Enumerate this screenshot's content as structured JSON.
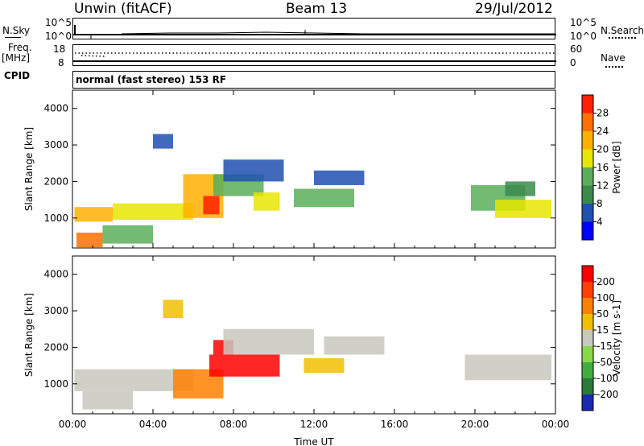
{
  "header": {
    "station": "Unwin (fitACF)",
    "beam": "Beam 13",
    "date": "29/Jul/2012"
  },
  "top_panels": {
    "nsky_label": "N.Sky",
    "nsearch_label": "N.Search",
    "nsky_ticks": [
      "10^5",
      "10^0"
    ],
    "nsearch_ticks": [
      "10^5",
      "10^0"
    ],
    "freq_label": "Freq.",
    "freq_unit": "[MHz]",
    "freq_ticks": [
      "18",
      "8"
    ],
    "nave_label": "Nave",
    "nave_ticks": [
      "60",
      "0"
    ],
    "cpid_label": "CPID",
    "cpid_text": "normal (fast stereo) 153 RF"
  },
  "chart_data": [
    {
      "type": "heatmap",
      "quantity": "Power",
      "ylabel": "Slant Range [km]",
      "xlabel": "Time UT",
      "x_ticks": [
        "00:00",
        "04:00",
        "08:00",
        "12:00",
        "16:00",
        "20:00",
        "00:00"
      ],
      "y_ticks": [
        "1000",
        "2000",
        "3000",
        "4000"
      ],
      "xlim": [
        0,
        24
      ],
      "ylim": [
        180,
        4500
      ],
      "colorbar": {
        "label": "Power [dB]",
        "ticks": [
          "4",
          "8",
          "12",
          "16",
          "20",
          "24",
          "28"
        ],
        "range": [
          0,
          32
        ],
        "colors": [
          "#0000ff",
          "#2050b0",
          "#3a8a4a",
          "#5aae5a",
          "#e6e600",
          "#ffb000",
          "#ff7000",
          "#ff2000"
        ]
      },
      "regions": [
        {
          "t0": 0.1,
          "t1": 2.0,
          "r0": 900,
          "r1": 1300,
          "level": 5
        },
        {
          "t0": 2.0,
          "t1": 6.0,
          "r0": 950,
          "r1": 1400,
          "level": 4
        },
        {
          "t0": 5.5,
          "t1": 7.5,
          "r0": 1000,
          "r1": 2200,
          "level": 5
        },
        {
          "t0": 6.5,
          "t1": 7.3,
          "r0": 1100,
          "r1": 1600,
          "level": 7
        },
        {
          "t0": 0.2,
          "t1": 1.5,
          "r0": 200,
          "r1": 600,
          "level": 6
        },
        {
          "t0": 1.5,
          "t1": 4.0,
          "r0": 300,
          "r1": 800,
          "level": 3
        },
        {
          "t0": 7.0,
          "t1": 9.5,
          "r0": 1600,
          "r1": 2200,
          "level": 3
        },
        {
          "t0": 7.5,
          "t1": 10.5,
          "r0": 2000,
          "r1": 2600,
          "level": 1
        },
        {
          "t0": 9.0,
          "t1": 10.3,
          "r0": 1200,
          "r1": 1700,
          "level": 4
        },
        {
          "t0": 11.0,
          "t1": 14.0,
          "r0": 1300,
          "r1": 1800,
          "level": 3
        },
        {
          "t0": 12.0,
          "t1": 14.5,
          "r0": 1900,
          "r1": 2300,
          "level": 1
        },
        {
          "t0": 19.8,
          "t1": 22.5,
          "r0": 1200,
          "r1": 1900,
          "level": 3
        },
        {
          "t0": 21.0,
          "t1": 23.8,
          "r0": 1000,
          "r1": 1500,
          "level": 4
        },
        {
          "t0": 21.5,
          "t1": 23.0,
          "r0": 1600,
          "r1": 2000,
          "level": 2
        },
        {
          "t0": 4.0,
          "t1": 5.0,
          "r0": 2900,
          "r1": 3300,
          "level": 1
        }
      ]
    },
    {
      "type": "heatmap",
      "quantity": "Velocity",
      "ylabel": "Slant Range [km]",
      "xlabel": "Time UT",
      "x_ticks": [
        "00:00",
        "04:00",
        "08:00",
        "12:00",
        "16:00",
        "20:00",
        "00:00"
      ],
      "y_ticks": [
        "1000",
        "2000",
        "3000",
        "4000"
      ],
      "xlim": [
        0,
        24
      ],
      "ylim": [
        180,
        4500
      ],
      "colorbar": {
        "label": "Velocity [m s-1]",
        "ticks": [
          "200",
          "100",
          "50",
          "15",
          "-15",
          "-50",
          "-100",
          "-200"
        ],
        "range": [
          -250,
          250
        ],
        "colors": [
          "#1a2ab0",
          "#2a7a3a",
          "#3fae3f",
          "#88d848",
          "#c8c8c0",
          "#f0c000",
          "#ff8000",
          "#ff4000",
          "#ff0000"
        ]
      },
      "regions": [
        {
          "t0": 0.1,
          "t1": 6.0,
          "r0": 800,
          "r1": 1400,
          "level": 4
        },
        {
          "t0": 5.0,
          "t1": 7.5,
          "r0": 600,
          "r1": 1400,
          "level": 6
        },
        {
          "t0": 6.8,
          "t1": 10.3,
          "r0": 1200,
          "r1": 1800,
          "level": 8
        },
        {
          "t0": 7.0,
          "t1": 8.0,
          "r0": 1800,
          "r1": 2200,
          "level": 8
        },
        {
          "t0": 7.5,
          "t1": 12.0,
          "r0": 1800,
          "r1": 2500,
          "level": 4
        },
        {
          "t0": 11.5,
          "t1": 13.5,
          "r0": 1300,
          "r1": 1700,
          "level": 5
        },
        {
          "t0": 12.5,
          "t1": 15.5,
          "r0": 1800,
          "r1": 2300,
          "level": 4
        },
        {
          "t0": 19.5,
          "t1": 23.8,
          "r0": 1100,
          "r1": 1800,
          "level": 4
        },
        {
          "t0": 0.5,
          "t1": 3.0,
          "r0": 300,
          "r1": 800,
          "level": 4
        },
        {
          "t0": 4.5,
          "t1": 5.5,
          "r0": 2800,
          "r1": 3300,
          "level": 5
        }
      ]
    }
  ]
}
